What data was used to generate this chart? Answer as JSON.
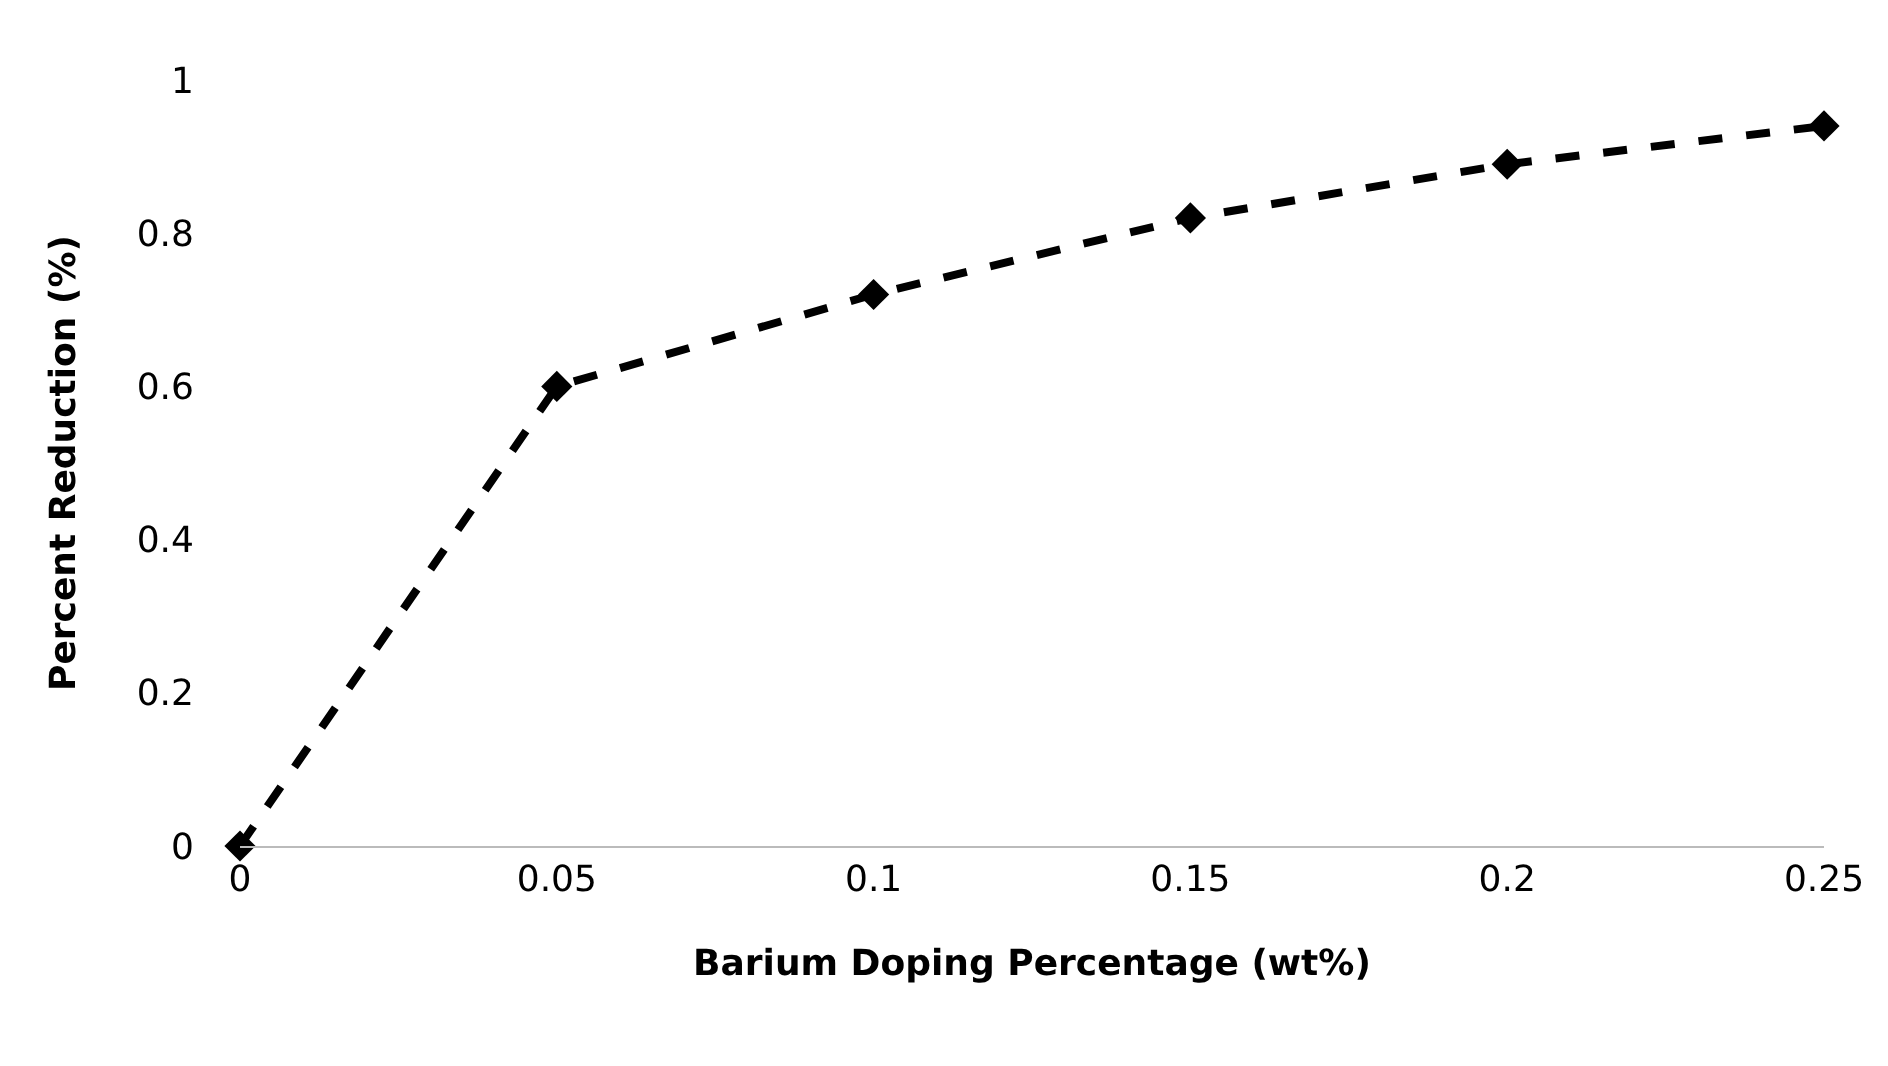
{
  "chart_data": {
    "type": "line",
    "xlabel": "Barium Doping Percentage (wt%)",
    "ylabel": "Percent Reduction (%)",
    "x": [
      0,
      0.05,
      0.1,
      0.15,
      0.2,
      0.25
    ],
    "series": [
      {
        "color": "#000000",
        "values": [
          0,
          0.6,
          0.72,
          0.82,
          0.89,
          0.94
        ]
      }
    ],
    "xlim": [
      0,
      0.25
    ],
    "xticks": [
      0,
      0.05,
      0.1,
      0.15,
      0.2,
      0.25
    ],
    "ylim": [
      0,
      1
    ],
    "yticks": [
      0,
      0.2,
      0.4,
      0.6,
      0.8,
      1
    ],
    "grid": false,
    "marker": "diamond",
    "line_style": "dashed"
  }
}
